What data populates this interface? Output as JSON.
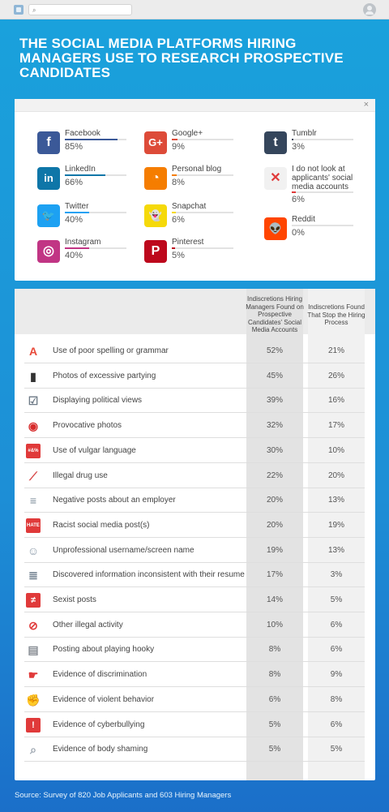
{
  "browser": {
    "search_placeholder": ""
  },
  "headline": "THE SOCIAL MEDIA PLATFORMS HIRING MANAGERS USE TO RESEARCH PROSPECTIVE CANDIDATES",
  "platforms_panel": {
    "close": "×",
    "platforms": [
      {
        "name": "Facebook",
        "value": "85%",
        "fraction": 0.85,
        "color": "#3b5998",
        "icon": "facebook-icon",
        "glyph": "f"
      },
      {
        "name": "LinkedIn",
        "value": "66%",
        "fraction": 0.66,
        "color": "#0e76a8",
        "icon": "linkedin-icon",
        "glyph": "in"
      },
      {
        "name": "Twitter",
        "value": "40%",
        "fraction": 0.4,
        "color": "#1da1f2",
        "icon": "twitter-icon",
        "glyph": "🐦"
      },
      {
        "name": "Instagram",
        "value": "40%",
        "fraction": 0.4,
        "color": "#c13584",
        "icon": "instagram-icon",
        "glyph": "◎"
      },
      {
        "name": "Google+",
        "value": "9%",
        "fraction": 0.09,
        "color": "#dd4b39",
        "icon": "google-plus-icon",
        "glyph": "G+"
      },
      {
        "name": "Personal blog",
        "value": "8%",
        "fraction": 0.08,
        "color": "#f57d00",
        "icon": "rss-icon",
        "glyph": "◔"
      },
      {
        "name": "Snapchat",
        "value": "6%",
        "fraction": 0.06,
        "color": "#f5d90a",
        "icon": "snapchat-icon",
        "glyph": "👻"
      },
      {
        "name": "Pinterest",
        "value": "5%",
        "fraction": 0.05,
        "color": "#bd081c",
        "icon": "pinterest-icon",
        "glyph": "P"
      },
      {
        "name": "Tumblr",
        "value": "3%",
        "fraction": 0.03,
        "color": "#35465c",
        "icon": "tumblr-icon",
        "glyph": "t"
      },
      {
        "name": "I do not look at applicants' social media accounts",
        "value": "6%",
        "fraction": 0.06,
        "color": "#e03a3a",
        "icon": "x-icon",
        "glyph": "✕"
      },
      {
        "name": "Reddit",
        "value": "0%",
        "fraction": 0.0,
        "color": "#ff4500",
        "icon": "reddit-icon",
        "glyph": "👽"
      }
    ]
  },
  "table": {
    "col1_header": "Indiscretions Hiring Managers Found on Prospective Candidates' Social Media Accounts",
    "col2_header": "Indiscretions Found That Stop the Hiring Process",
    "rows": [
      {
        "icon": "spelling-icon",
        "label": "Use of poor spelling or grammar",
        "found": "52%",
        "stop": "21%"
      },
      {
        "icon": "bottle-icon",
        "label": "Photos of excessive partying",
        "found": "45%",
        "stop": "26%"
      },
      {
        "icon": "ballot-box-icon",
        "label": "Displaying political views",
        "found": "39%",
        "stop": "16%"
      },
      {
        "icon": "lips-icon",
        "label": "Provocative photos",
        "found": "32%",
        "stop": "17%"
      },
      {
        "icon": "swear-bubble-icon",
        "label": "Use of vulgar language",
        "found": "30%",
        "stop": "10%"
      },
      {
        "icon": "syringe-icon",
        "label": "Illegal drug use",
        "found": "22%",
        "stop": "20%"
      },
      {
        "icon": "negative-post-icon",
        "label": "Negative posts about an employer",
        "found": "20%",
        "stop": "13%"
      },
      {
        "icon": "hate-sign-icon",
        "label": "Racist social media post(s)",
        "found": "20%",
        "stop": "19%"
      },
      {
        "icon": "username-icon",
        "label": "Unprofessional username/screen name",
        "found": "19%",
        "stop": "13%"
      },
      {
        "icon": "resume-icon",
        "label": "Discovered information inconsistent with their resume",
        "found": "17%",
        "stop": "3%"
      },
      {
        "icon": "not-equal-icon",
        "label": "Sexist posts",
        "found": "14%",
        "stop": "5%"
      },
      {
        "icon": "prohibited-icon",
        "label": "Other illegal activity",
        "found": "10%",
        "stop": "6%"
      },
      {
        "icon": "hooky-post-icon",
        "label": "Posting about playing hooky",
        "found": "8%",
        "stop": "6%"
      },
      {
        "icon": "pointing-hand-icon",
        "label": "Evidence of discrimination",
        "found": "8%",
        "stop": "9%"
      },
      {
        "icon": "fist-icon",
        "label": "Evidence of violent behavior",
        "found": "6%",
        "stop": "8%"
      },
      {
        "icon": "cyberbully-icon",
        "label": "Evidence of cyberbullying",
        "found": "5%",
        "stop": "6%"
      },
      {
        "icon": "magnifier-scale-icon",
        "label": "Evidence of body shaming",
        "found": "5%",
        "stop": "5%"
      }
    ]
  },
  "source": "Source: Survey of 820 Job Applicants and 603 Hiring Managers"
}
